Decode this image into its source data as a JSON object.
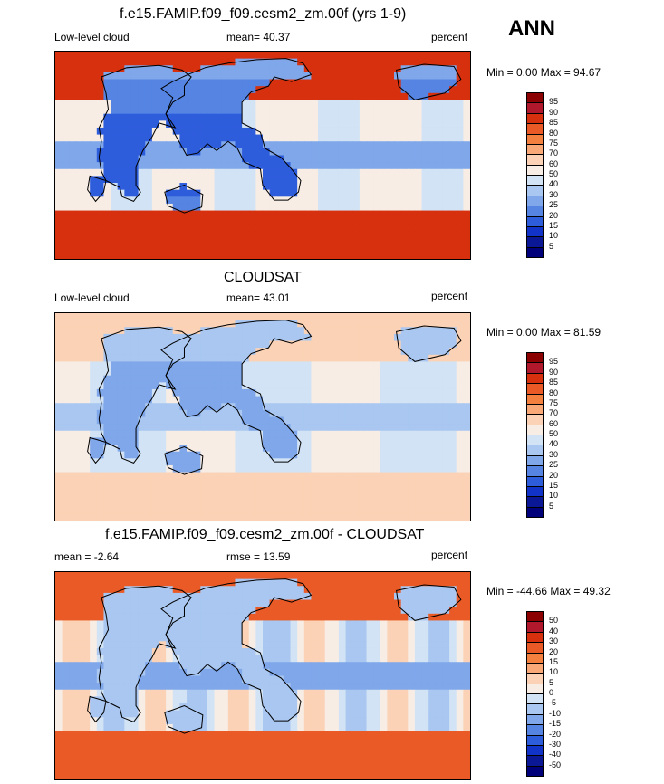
{
  "season": "ANN",
  "panels": [
    {
      "title": "f.e15.FAMIP.f09_f09.cesm2_zm.00f (yrs 1-9)",
      "left_label": "Low-level cloud",
      "center_label": "mean=  40.37",
      "right_label": "percent",
      "minmax": "Min =   0.00 Max =  94.67",
      "levels": [
        "95",
        "90",
        "85",
        "80",
        "75",
        "70",
        "60",
        "50",
        "40",
        "30",
        "25",
        "20",
        "15",
        "10",
        "5"
      ],
      "colors": [
        "#8b0000",
        "#b2182b",
        "#d6300e",
        "#ea5a26",
        "#f4803f",
        "#f9a877",
        "#fbd2b5",
        "#f7ede5",
        "#d2e3f5",
        "#a9c7f0",
        "#7fa7ea",
        "#5584e3",
        "#2e5ddc",
        "#1233c8",
        "#0a1896",
        "#00007a"
      ],
      "field": "model"
    },
    {
      "title": "CLOUDSAT",
      "left_label": "Low-level cloud",
      "center_label": "mean=  43.01",
      "right_label": "percent",
      "minmax": "Min =   0.00 Max =  81.59",
      "levels": [
        "95",
        "90",
        "85",
        "80",
        "75",
        "70",
        "60",
        "50",
        "40",
        "30",
        "25",
        "20",
        "15",
        "10",
        "5"
      ],
      "colors": [
        "#8b0000",
        "#b2182b",
        "#d6300e",
        "#ea5a26",
        "#f4803f",
        "#f9a877",
        "#fbd2b5",
        "#f7ede5",
        "#d2e3f5",
        "#a9c7f0",
        "#7fa7ea",
        "#5584e3",
        "#2e5ddc",
        "#1233c8",
        "#0a1896",
        "#00007a"
      ],
      "field": "obs"
    },
    {
      "title": "f.e15.FAMIP.f09_f09.cesm2_zm.00f - CLOUDSAT",
      "left_label": "mean =  -2.64",
      "center_label": "rmse =  13.59",
      "right_label": "percent",
      "minmax": "Min = -44.66 Max =  49.32",
      "levels": [
        "50",
        "40",
        "30",
        "20",
        "15",
        "10",
        "5",
        "0",
        "-5",
        "-10",
        "-15",
        "-20",
        "-30",
        "-40",
        "-50"
      ],
      "colors": [
        "#8b0000",
        "#b2182b",
        "#d6300e",
        "#ea5a26",
        "#f4803f",
        "#f9a877",
        "#fbd2b5",
        "#f7ede5",
        "#d2e3f5",
        "#a9c7f0",
        "#7fa7ea",
        "#5584e3",
        "#2e5ddc",
        "#1233c8",
        "#0a1896",
        "#00007a"
      ],
      "field": "diff"
    }
  ]
}
